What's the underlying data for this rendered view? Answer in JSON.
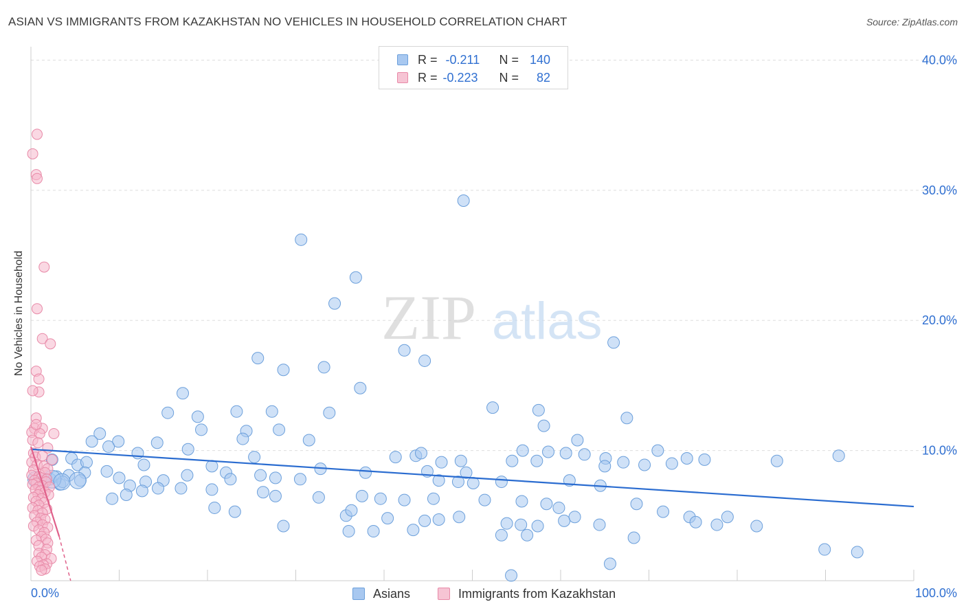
{
  "title": "ASIAN VS IMMIGRANTS FROM KAZAKHSTAN NO VEHICLES IN HOUSEHOLD CORRELATION CHART",
  "source": "Source: ZipAtlas.com",
  "watermark": {
    "zip": "ZIP",
    "atlas": "atlas"
  },
  "legend": {
    "asians": {
      "r_label": "R =",
      "r_value": "-0.211",
      "n_label": "N =",
      "n_value": "140"
    },
    "kazakhstan": {
      "r_label": "R =",
      "r_value": "-0.223",
      "n_label": "N =",
      "n_value": "82"
    }
  },
  "colors": {
    "asians_fill": "#a8c8f0",
    "asians_stroke": "#6b9fdb",
    "asians_line": "#2a6cd0",
    "kaz_fill": "#f6b8cc",
    "kaz_stroke": "#e889a7",
    "kaz_line": "#e0608a",
    "tick_text": "#2f6fd1",
    "grid": "#dddddd"
  },
  "chart_data": {
    "type": "scatter",
    "title": "ASIAN VS IMMIGRANTS FROM KAZAKHSTAN NO VEHICLES IN HOUSEHOLD CORRELATION CHART",
    "xlabel": "",
    "ylabel": "No Vehicles in Household",
    "xlim": [
      0,
      100
    ],
    "ylim": [
      0,
      40.5
    ],
    "x_tick_labels": [
      "0.0%",
      "100.0%"
    ],
    "y_ticks": [
      10,
      20,
      30,
      40
    ],
    "y_tick_labels": [
      "10.0%",
      "20.0%",
      "30.0%",
      "40.0%"
    ],
    "grid": true,
    "legend_position": "bottom",
    "series": [
      {
        "name": "Asians",
        "r": -0.211,
        "n": 140,
        "trend": {
          "x": [
            0,
            100
          ],
          "y": [
            10.1,
            5.7
          ]
        },
        "points": [
          [
            49,
            29.2
          ],
          [
            30.6,
            26.2
          ],
          [
            36.8,
            23.3
          ],
          [
            34.4,
            21.3
          ],
          [
            66,
            18.3
          ],
          [
            25.7,
            17.1
          ],
          [
            42.3,
            17.7
          ],
          [
            44.6,
            16.9
          ],
          [
            28.6,
            16.2
          ],
          [
            33.2,
            16.4
          ],
          [
            37.3,
            14.8
          ],
          [
            17.2,
            14.4
          ],
          [
            52.3,
            13.3
          ],
          [
            57.5,
            13.1
          ],
          [
            15.5,
            12.9
          ],
          [
            23.3,
            13
          ],
          [
            27.3,
            13
          ],
          [
            33.8,
            12.9
          ],
          [
            18.9,
            12.6
          ],
          [
            67.5,
            12.5
          ],
          [
            19.3,
            11.6
          ],
          [
            24.4,
            11.5
          ],
          [
            28.1,
            11.6
          ],
          [
            7.8,
            11.3
          ],
          [
            58.1,
            11.9
          ],
          [
            6.9,
            10.7
          ],
          [
            9.9,
            10.7
          ],
          [
            24,
            10.9
          ],
          [
            31.5,
            10.8
          ],
          [
            61.9,
            10.8
          ],
          [
            14.3,
            10.6
          ],
          [
            17.8,
            10.1
          ],
          [
            8.8,
            10.3
          ],
          [
            12.1,
            9.8
          ],
          [
            55.7,
            10
          ],
          [
            43.6,
            9.6
          ],
          [
            44.2,
            9.8
          ],
          [
            60.6,
            9.8
          ],
          [
            71,
            10
          ],
          [
            54.5,
            9.2
          ],
          [
            62.7,
            9.7
          ],
          [
            58.6,
            9.9
          ],
          [
            65.1,
            9.4
          ],
          [
            67.1,
            9.1
          ],
          [
            2.4,
            9.3
          ],
          [
            4.6,
            9.4
          ],
          [
            5.3,
            8.9
          ],
          [
            6.3,
            9.1
          ],
          [
            12.8,
            8.9
          ],
          [
            25.3,
            9.5
          ],
          [
            41.3,
            9.5
          ],
          [
            46.5,
            9.1
          ],
          [
            48.7,
            9.2
          ],
          [
            57.3,
            9.2
          ],
          [
            74.3,
            9.4
          ],
          [
            76.3,
            9.3
          ],
          [
            84.5,
            9.2
          ],
          [
            91.5,
            9.6
          ],
          [
            20.5,
            8.8
          ],
          [
            22.1,
            8.3
          ],
          [
            32.8,
            8.6
          ],
          [
            37.9,
            8.3
          ],
          [
            44.9,
            8.4
          ],
          [
            49.3,
            8.3
          ],
          [
            65,
            8.8
          ],
          [
            69.5,
            8.9
          ],
          [
            72.6,
            9
          ],
          [
            4.3,
            8.1
          ],
          [
            6.1,
            8.3
          ],
          [
            8.6,
            8.4
          ],
          [
            17.7,
            8.1
          ],
          [
            26,
            8.1
          ],
          [
            27.7,
            7.9
          ],
          [
            15,
            7.7
          ],
          [
            10,
            7.9
          ],
          [
            13,
            7.6
          ],
          [
            22.6,
            7.8
          ],
          [
            30.5,
            7.8
          ],
          [
            46.2,
            7.7
          ],
          [
            48.4,
            7.6
          ],
          [
            50.1,
            7.5
          ],
          [
            53.3,
            7.6
          ],
          [
            61,
            7.7
          ],
          [
            64.5,
            7.3
          ],
          [
            1.5,
            7.7
          ],
          [
            2.2,
            7.8
          ],
          [
            2.9,
            8
          ],
          [
            3.3,
            7.4
          ],
          [
            3.6,
            7.6
          ],
          [
            5.6,
            7.7
          ],
          [
            11.2,
            7.3
          ],
          [
            12.6,
            6.9
          ],
          [
            14.4,
            7.1
          ],
          [
            17,
            7.1
          ],
          [
            20.5,
            7
          ],
          [
            26.3,
            6.8
          ],
          [
            27.7,
            6.5
          ],
          [
            32.6,
            6.4
          ],
          [
            37.5,
            6.5
          ],
          [
            39.6,
            6.3
          ],
          [
            42.3,
            6.2
          ],
          [
            45.6,
            6.3
          ],
          [
            51.4,
            6.2
          ],
          [
            55.6,
            6.1
          ],
          [
            58.4,
            5.9
          ],
          [
            59.8,
            5.6
          ],
          [
            68.6,
            5.9
          ],
          [
            71.6,
            5.3
          ],
          [
            74.6,
            4.9
          ],
          [
            75.3,
            4.5
          ],
          [
            77.7,
            4.3
          ],
          [
            78.9,
            4.9
          ],
          [
            82.2,
            4.2
          ],
          [
            89.9,
            2.4
          ],
          [
            93.6,
            2.2
          ],
          [
            9.2,
            6.3
          ],
          [
            10.8,
            6.6
          ],
          [
            20.8,
            5.6
          ],
          [
            23.1,
            5.3
          ],
          [
            35.7,
            5
          ],
          [
            36.3,
            5.4
          ],
          [
            40.4,
            4.8
          ],
          [
            44.6,
            4.6
          ],
          [
            46.2,
            4.7
          ],
          [
            48.5,
            4.9
          ],
          [
            53.9,
            4.4
          ],
          [
            55.5,
            4.3
          ],
          [
            57.4,
            4.2
          ],
          [
            60.4,
            4.6
          ],
          [
            61.6,
            4.9
          ],
          [
            64.4,
            4.3
          ],
          [
            28.6,
            4.2
          ],
          [
            36,
            3.8
          ],
          [
            38.8,
            3.8
          ],
          [
            53.3,
            3.5
          ],
          [
            56.2,
            3.5
          ],
          [
            68.3,
            3.3
          ],
          [
            43.3,
            3.9
          ],
          [
            54.4,
            0.4
          ],
          [
            65.6,
            1.3
          ]
        ]
      },
      {
        "name": "Immigrants from Kazakhstan",
        "r": -0.223,
        "n": 82,
        "trend": {
          "x": [
            0,
            3.2
          ],
          "y": [
            10.3,
            3.4
          ],
          "dashed_to": {
            "x": 4.5,
            "y": 0
          }
        },
        "points": [
          [
            0.7,
            34.3
          ],
          [
            0.2,
            32.8
          ],
          [
            0.6,
            31.2
          ],
          [
            0.7,
            30.9
          ],
          [
            1.5,
            24.1
          ],
          [
            0.7,
            20.9
          ],
          [
            1.3,
            18.6
          ],
          [
            2.2,
            18.2
          ],
          [
            0.6,
            16.1
          ],
          [
            0.9,
            15.5
          ],
          [
            0.9,
            14.5
          ],
          [
            0.2,
            14.6
          ],
          [
            0.6,
            12.5
          ],
          [
            0.4,
            11.7
          ],
          [
            1.3,
            11.7
          ],
          [
            0.1,
            11.4
          ],
          [
            1,
            11.3
          ],
          [
            2.6,
            11.3
          ],
          [
            0.2,
            10.8
          ],
          [
            0.8,
            10.6
          ],
          [
            1.9,
            10.2
          ],
          [
            0.3,
            9.8
          ],
          [
            0.5,
            9.5
          ],
          [
            1.3,
            9.6
          ],
          [
            2.4,
            9.3
          ],
          [
            0.1,
            9.1
          ],
          [
            0.7,
            8.9
          ],
          [
            1.5,
            8.8
          ],
          [
            1.9,
            8.6
          ],
          [
            0.3,
            8.5
          ],
          [
            1.6,
            8.3
          ],
          [
            0.1,
            8.1
          ],
          [
            0.9,
            8
          ],
          [
            1.2,
            7.9
          ],
          [
            1.8,
            7.8
          ],
          [
            0.4,
            7.7
          ],
          [
            1.7,
            7.6
          ],
          [
            0.6,
            7.5
          ],
          [
            0.2,
            7.4
          ],
          [
            1.3,
            7.3
          ],
          [
            0.9,
            7.2
          ],
          [
            2.1,
            7.2
          ],
          [
            0.5,
            7
          ],
          [
            1.1,
            6.9
          ],
          [
            1.6,
            6.8
          ],
          [
            0.8,
            6.6
          ],
          [
            2,
            6.6
          ],
          [
            0.3,
            6.4
          ],
          [
            1.2,
            6.3
          ],
          [
            0.6,
            6.1
          ],
          [
            1.5,
            6
          ],
          [
            0.9,
            5.8
          ],
          [
            0.2,
            5.6
          ],
          [
            1.8,
            5.5
          ],
          [
            0.8,
            5.4
          ],
          [
            1.3,
            5.2
          ],
          [
            0.4,
            5
          ],
          [
            1.1,
            4.8
          ],
          [
            1.6,
            4.7
          ],
          [
            0.7,
            4.5
          ],
          [
            1.3,
            4.3
          ],
          [
            0.3,
            4.2
          ],
          [
            1.9,
            4.1
          ],
          [
            0.9,
            3.9
          ],
          [
            1.5,
            3.7
          ],
          [
            1.2,
            3.4
          ],
          [
            1.7,
            3.2
          ],
          [
            0.6,
            3.1
          ],
          [
            1.9,
            2.9
          ],
          [
            0.9,
            2.7
          ],
          [
            1.8,
            2.4
          ],
          [
            0.9,
            2.1
          ],
          [
            1.6,
            2
          ],
          [
            1.2,
            1.8
          ],
          [
            2.3,
            1.7
          ],
          [
            0.7,
            1.5
          ],
          [
            1.8,
            1.3
          ],
          [
            1.4,
            1.2
          ],
          [
            1,
            1.1
          ],
          [
            1.6,
            0.9
          ],
          [
            1.2,
            0.8
          ],
          [
            0.6,
            12
          ]
        ]
      }
    ]
  }
}
